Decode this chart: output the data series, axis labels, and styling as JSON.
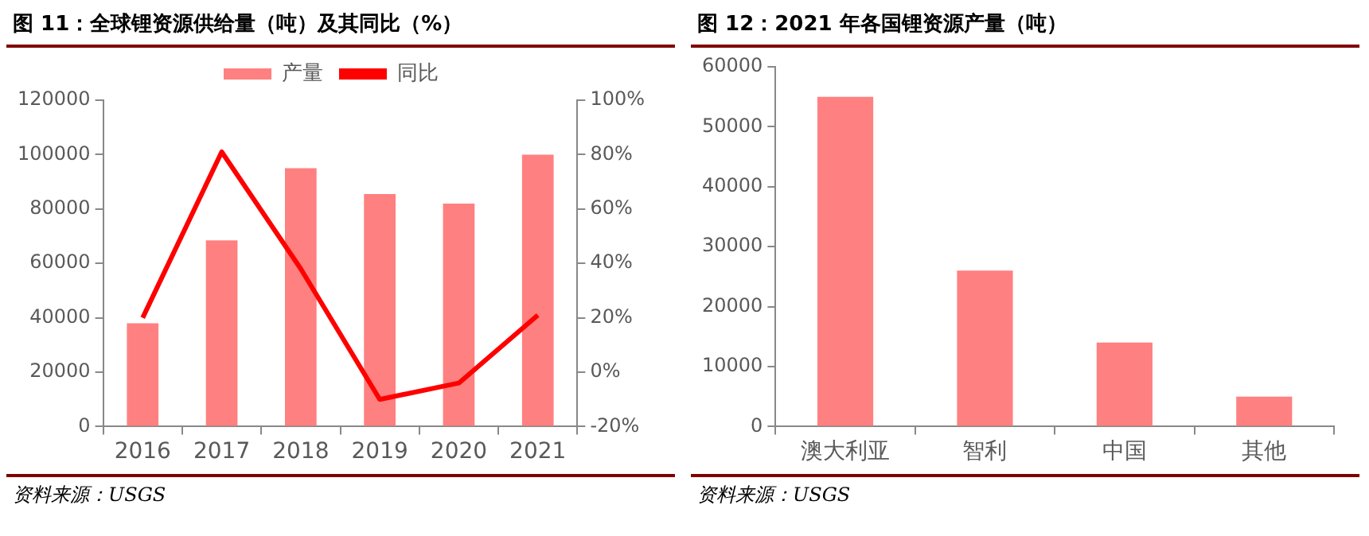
{
  "chart_data": [
    {
      "type": "bar",
      "title": "图 11：全球锂资源供给量（吨）及其同比（%）",
      "categories": [
        "2016",
        "2017",
        "2018",
        "2019",
        "2020",
        "2021"
      ],
      "series": [
        {
          "name": "产量",
          "type": "bar",
          "color": "#ff8080",
          "values": [
            38000,
            68500,
            95000,
            85500,
            82000,
            100000
          ]
        },
        {
          "name": "同比",
          "type": "line",
          "color": "#ff0000",
          "axis": "y2",
          "values": [
            20,
            81,
            38,
            -10,
            -4,
            21
          ]
        }
      ],
      "ylim": [
        0,
        120000
      ],
      "yticks": [
        0,
        20000,
        40000,
        60000,
        80000,
        100000,
        120000
      ],
      "y2lim": [
        -20,
        100
      ],
      "y2ticks": [
        {
          "value": -20,
          "label": "-20%"
        },
        {
          "value": 0,
          "label": "0%"
        },
        {
          "value": 20,
          "label": "20%"
        },
        {
          "value": 40,
          "label": "40%"
        },
        {
          "value": 60,
          "label": "60%"
        },
        {
          "value": 80,
          "label": "80%"
        },
        {
          "value": 100,
          "label": "100%"
        }
      ],
      "legend": "top",
      "marker": "none",
      "annotations": [
        "资料来源：USGS"
      ]
    },
    {
      "type": "bar",
      "title": "图 12：2021 年各国锂资源产量（吨）",
      "categories": [
        "澳大利亚",
        "智利",
        "中国",
        "其他"
      ],
      "series": [
        {
          "color": "#ff8080",
          "values": [
            55000,
            26000,
            14000,
            5000
          ]
        }
      ],
      "ylim": [
        0,
        60000
      ],
      "yticks": [
        0,
        10000,
        20000,
        30000,
        40000,
        50000,
        60000
      ],
      "annotations": [
        "资料来源：USGS"
      ]
    }
  ]
}
